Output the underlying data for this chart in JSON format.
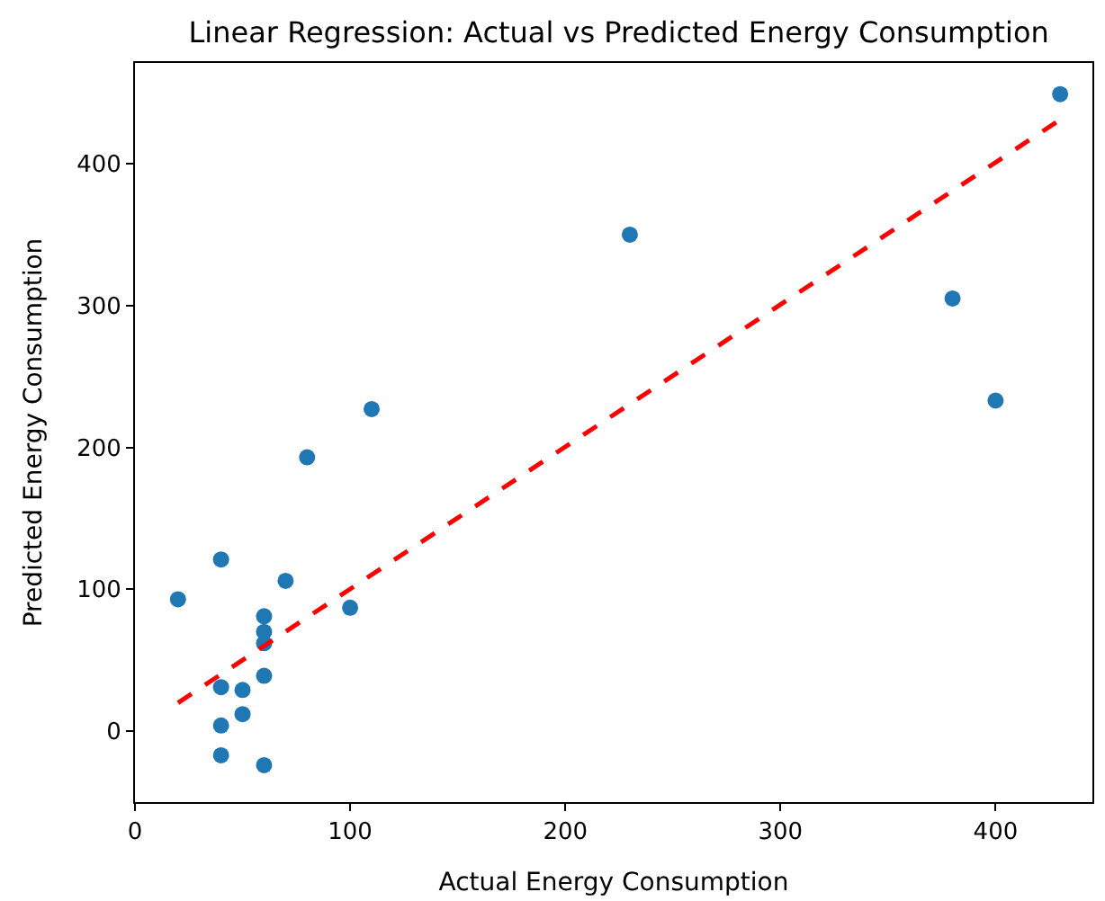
{
  "chart_data": {
    "type": "scatter",
    "title": "Linear Regression: Actual vs Predicted Energy Consumption",
    "xlabel": "Actual Energy Consumption",
    "ylabel": "Predicted Energy Consumption",
    "xlim": [
      0,
      445
    ],
    "ylim": [
      -50,
      471
    ],
    "xticks": [
      0,
      100,
      200,
      300,
      400
    ],
    "yticks": [
      0,
      100,
      200,
      300,
      400
    ],
    "series": [
      {
        "color": "#1f77b4",
        "marker": "circle",
        "x": [
          20,
          40,
          40,
          40,
          40,
          50,
          50,
          60,
          60,
          60,
          60,
          60,
          70,
          80,
          100,
          110,
          230,
          380,
          400,
          430
        ],
        "values": [
          93,
          121,
          31,
          4,
          -17,
          29,
          12,
          81,
          70,
          62,
          39,
          -24,
          106,
          193,
          87,
          227,
          350,
          305,
          233,
          449
        ]
      },
      {
        "type": "line",
        "color": "#ff0000",
        "line_style": "dashed",
        "marker": "none",
        "x": [
          20,
          430
        ],
        "values": [
          20,
          431
        ]
      }
    ]
  }
}
